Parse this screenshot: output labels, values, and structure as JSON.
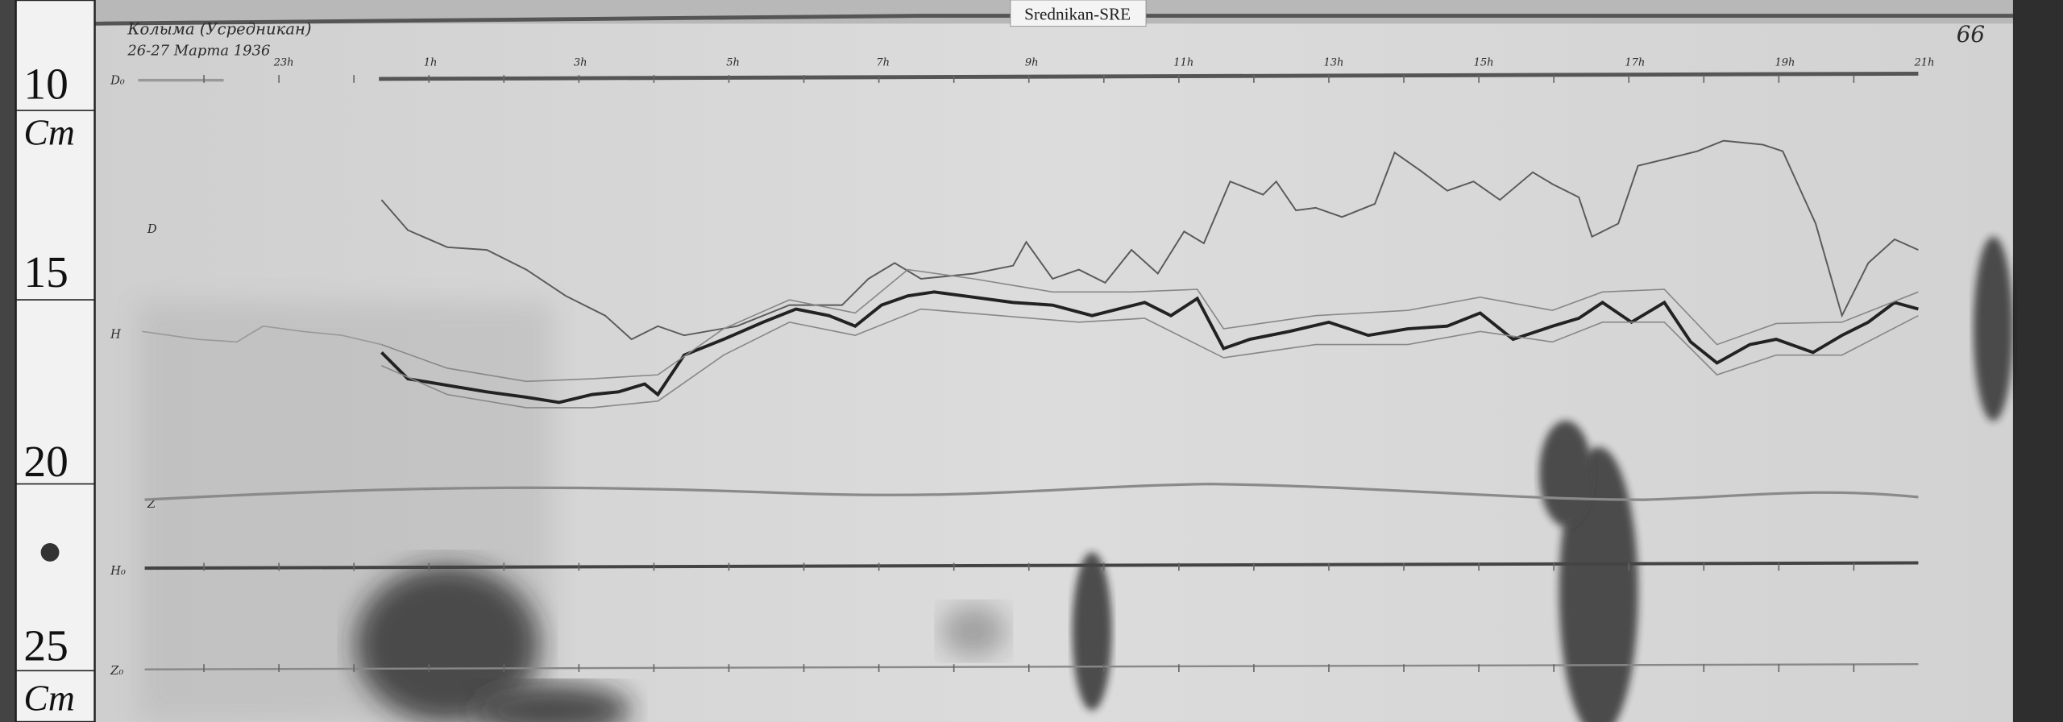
{
  "header_label": "Srednikan-SRE",
  "sheet_number": "66",
  "annotation": {
    "line1": "Колыма (Усредникан)",
    "line2": "26-27 Марта 1936"
  },
  "ruler": {
    "marks": [
      "10",
      "Cm",
      "15",
      "20",
      "25",
      "Cm"
    ]
  },
  "time_labels": [
    "23h",
    "1h",
    "3h",
    "5h",
    "7h",
    "9h",
    "11h",
    "13h",
    "15h",
    "17h",
    "19h",
    "21h"
  ],
  "trace_labels": {
    "d0": "D₀",
    "d": "D",
    "h": "H",
    "z": "Z",
    "h0": "H₀",
    "z0": "Z₀"
  },
  "colors": {
    "paper": "#d6d6d6",
    "trace": "#2a2a2a",
    "shadow": "#222222"
  }
}
